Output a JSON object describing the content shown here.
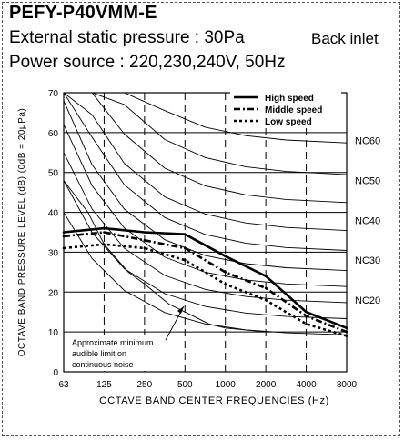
{
  "header": {
    "model": "PEFY-P40VMM-E",
    "pressure_line": "External static pressure : 30Pa",
    "inlet": "Back inlet",
    "power_line": "Power source : 220,230,240V, 50Hz"
  },
  "chart_data": {
    "type": "line",
    "title": "",
    "xlabel": "OCTAVE BAND CENTER FREQUENCIES (Hz)",
    "ylabel": "OCTAVE BAND PRESSURE LEVEL (dB) (0dB = 20μPa)",
    "x_categories": [
      "63",
      "125",
      "250",
      "500",
      "1000",
      "2000",
      "4000",
      "8000"
    ],
    "y_ticks": [
      0,
      10,
      20,
      30,
      40,
      50,
      60,
      70
    ],
    "ylim": [
      0,
      70
    ],
    "grid": true,
    "legend_position": "top-right",
    "series": [
      {
        "name": "High speed",
        "style": "solid",
        "values": [
          35,
          36,
          35,
          34.5,
          29,
          24,
          15,
          11
        ]
      },
      {
        "name": "Middle speed",
        "style": "dash-dot",
        "values": [
          34,
          35,
          33,
          31,
          25,
          21,
          14,
          10
        ]
      },
      {
        "name": "Low speed",
        "style": "dotted",
        "values": [
          31,
          32,
          31,
          28,
          22,
          18,
          12,
          9
        ]
      }
    ],
    "nc_labels": [
      "NC60",
      "NC50",
      "NC40",
      "NC30",
      "NC20"
    ],
    "annotation": {
      "lines": [
        "Approximate minimum",
        "audible limit on",
        "continuous noise"
      ]
    }
  }
}
